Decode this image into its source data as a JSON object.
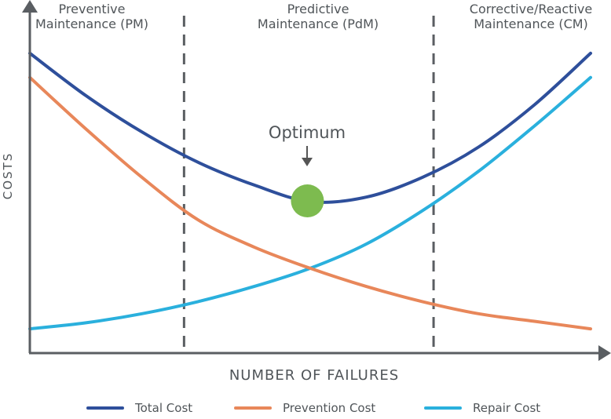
{
  "chart_data": {
    "type": "line",
    "title": "",
    "xlabel": "NUMBER OF FAILURES",
    "ylabel": "COSTS",
    "xlim": [
      0,
      1
    ],
    "ylim": [
      0,
      1
    ],
    "grid": false,
    "legend_position": "bottom",
    "regions": [
      {
        "line1": "Preventive",
        "line2": "Maintenance (PM)"
      },
      {
        "line1": "Predictive",
        "line2": "Maintenance (PdM)"
      },
      {
        "line1": "Corrective/Reactive",
        "line2": "Maintenance (CM)"
      }
    ],
    "region_boundaries": [
      0.275,
      0.72
    ],
    "annotation": {
      "label": "Optimum",
      "x": 0.495,
      "y": 0.5
    },
    "x": [
      0,
      0.1,
      0.2,
      0.3,
      0.4,
      0.5,
      0.6,
      0.7,
      0.8,
      0.9,
      1.0
    ],
    "series": [
      {
        "name": "Total Cost",
        "color": "#2e4f9b",
        "values": [
          0.99,
          0.85,
          0.73,
          0.63,
          0.555,
          0.5,
          0.515,
          0.58,
          0.68,
          0.82,
          0.99
        ]
      },
      {
        "name": "Prevention Cost",
        "color": "#e8875a",
        "values": [
          0.91,
          0.74,
          0.58,
          0.44,
          0.35,
          0.28,
          0.22,
          0.17,
          0.13,
          0.105,
          0.08
        ]
      },
      {
        "name": "Repair Cost",
        "color": "#2ab0dd",
        "values": [
          0.08,
          0.1,
          0.13,
          0.17,
          0.22,
          0.28,
          0.36,
          0.47,
          0.6,
          0.75,
          0.91
        ]
      }
    ],
    "optimum_color": "#7dbb4f",
    "axis_color": "#5a5e62",
    "boundary_color": "#5a5e62"
  }
}
